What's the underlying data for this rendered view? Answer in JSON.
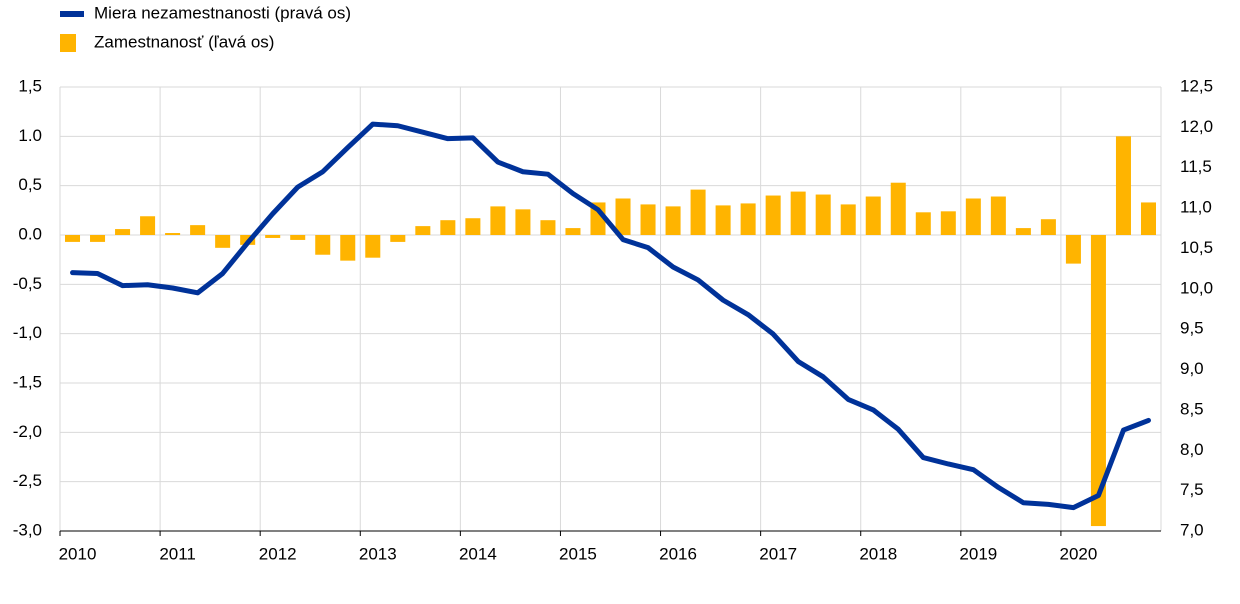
{
  "chart_data": {
    "type": "bar",
    "categories": [
      "2010",
      null,
      null,
      null,
      "2011",
      null,
      null,
      null,
      "2012",
      null,
      null,
      null,
      "2013",
      null,
      null,
      null,
      "2014",
      null,
      null,
      null,
      "2015",
      null,
      null,
      null,
      "2016",
      null,
      null,
      null,
      "2017",
      null,
      null,
      null,
      "2018",
      null,
      null,
      null,
      "2019",
      null,
      null,
      null,
      "2020",
      null,
      null,
      null
    ],
    "series": [
      {
        "name": "Miera nezamestnanosti (pravá os)",
        "type": "line",
        "axis": "y2",
        "color": "#003299",
        "values": [
          10.2,
          10.19,
          10.04,
          10.05,
          10.01,
          9.95,
          10.19,
          10.57,
          10.93,
          11.26,
          11.45,
          11.75,
          12.04,
          12.02,
          11.94,
          11.86,
          11.87,
          11.57,
          11.45,
          11.42,
          11.18,
          10.98,
          10.61,
          10.51,
          10.27,
          10.11,
          9.86,
          9.68,
          9.44,
          9.1,
          8.91,
          8.63,
          8.5,
          8.26,
          7.91,
          7.83,
          7.76,
          7.54,
          7.35,
          7.33,
          7.29,
          7.44,
          8.25,
          8.37
        ]
      },
      {
        "name": "Zamestnanosť (ľavá os)",
        "type": "bar",
        "color": "#ffb400",
        "values": [
          -0.07,
          -0.07,
          0.06,
          0.19,
          0.02,
          0.1,
          -0.13,
          -0.1,
          -0.03,
          -0.05,
          -0.2,
          -0.26,
          -0.23,
          -0.07,
          0.09,
          0.15,
          0.17,
          0.29,
          0.26,
          0.15,
          0.07,
          0.33,
          0.37,
          0.31,
          0.29,
          0.46,
          0.3,
          0.32,
          0.4,
          0.44,
          0.41,
          0.31,
          0.39,
          0.53,
          0.23,
          0.24,
          0.37,
          0.39,
          0.07,
          0.16,
          -0.29,
          -2.95,
          1.0,
          0.33
        ]
      }
    ],
    "ylim": [
      -3.0,
      1.5
    ],
    "yticks": [
      {
        "value": -3.0,
        "label": "-3,0"
      },
      {
        "value": -2.5,
        "label": "-2,5"
      },
      {
        "value": -2.0,
        "label": "-2,0"
      },
      {
        "value": -1.5,
        "label": "-1,5"
      },
      {
        "value": -1.0,
        "label": "-1,0"
      },
      {
        "value": -0.5,
        "label": "-0,5"
      },
      {
        "value": 0.0,
        "label": "0.0"
      },
      {
        "value": 0.5,
        "label": "0,5"
      },
      {
        "value": 1.0,
        "label": "1.0"
      },
      {
        "value": 1.5,
        "label": "1,5"
      }
    ],
    "y2lim": [
      7.0,
      12.5
    ],
    "y2ticks": [
      {
        "value": 7.0,
        "label": "7,0"
      },
      {
        "value": 7.5,
        "label": "7,5"
      },
      {
        "value": 8.0,
        "label": "8,0"
      },
      {
        "value": 8.5,
        "label": "8,5"
      },
      {
        "value": 9.0,
        "label": "9,0"
      },
      {
        "value": 9.5,
        "label": "9,5"
      },
      {
        "value": 10.0,
        "label": "10,0"
      },
      {
        "value": 10.5,
        "label": "10,5"
      },
      {
        "value": 11.0,
        "label": "11,0"
      },
      {
        "value": 11.5,
        "label": "11,5"
      },
      {
        "value": 12.0,
        "label": "12,0"
      },
      {
        "value": 12.5,
        "label": "12,5"
      }
    ],
    "grid": true,
    "legend": "top-left"
  }
}
